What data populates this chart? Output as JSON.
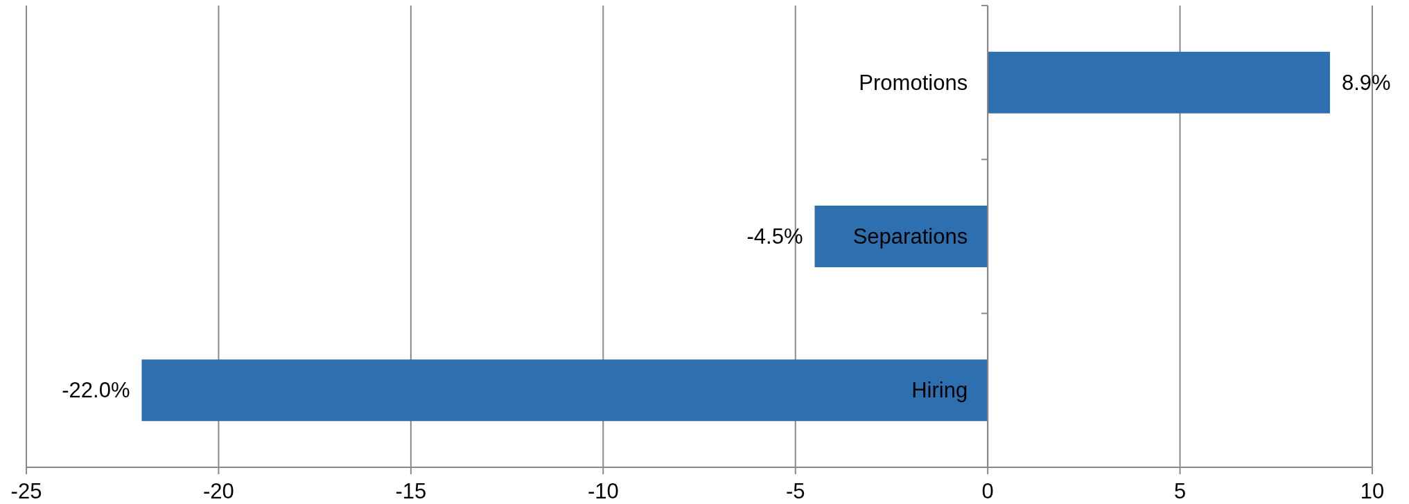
{
  "chart_data": {
    "type": "bar",
    "orientation": "horizontal",
    "categories": [
      "Promotions",
      "Separations",
      "Hiring"
    ],
    "values": [
      8.9,
      -4.5,
      -22.0
    ],
    "value_labels": [
      "8.9%",
      "-4.5%",
      "-22.0%"
    ],
    "color": "#2e6fb0",
    "xlim": [
      -25,
      10
    ],
    "xticks": [
      -25,
      -20,
      -15,
      -10,
      -5,
      0,
      5,
      10
    ],
    "grid": "x"
  }
}
